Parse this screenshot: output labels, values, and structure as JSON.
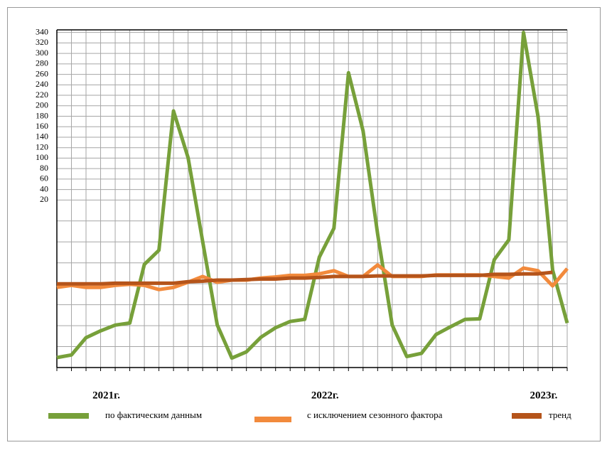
{
  "chart_data": {
    "type": "line",
    "categories": [
      null,
      null,
      null,
      "2021г.",
      null,
      null,
      null,
      null,
      null,
      null,
      null,
      null,
      null,
      null,
      null,
      null,
      null,
      null,
      "2022г.",
      null,
      null,
      null,
      null,
      null,
      null,
      null,
      null,
      null,
      null,
      null,
      null,
      null,
      null,
      "2023г.",
      null,
      null
    ],
    "series": [
      {
        "name": "по фактическим данным",
        "color": "#77a03a",
        "values": [
          -281,
          -276,
          -243,
          -230,
          -219,
          -215,
          -103,
          -76,
          190,
          101,
          -59,
          -219,
          -282,
          -270,
          -242,
          -224,
          -212,
          -208,
          -89,
          -34,
          263,
          152,
          -45,
          -219,
          -279,
          -273,
          -237,
          -222,
          -208,
          -207,
          -94,
          -56,
          340,
          179,
          -114,
          -215
        ]
      },
      {
        "name": "с исключением сезонного фактора",
        "color": "#f28a3c",
        "values": [
          -147,
          -143,
          -147,
          -147,
          -143,
          -141,
          -143,
          -151,
          -147,
          -137,
          -126,
          -137,
          -133,
          -133,
          -129,
          -127,
          -124,
          -124,
          -121,
          -115,
          -126,
          -126,
          -104,
          -126,
          -126,
          -126,
          -123,
          -123,
          -123,
          -123,
          -126,
          -129,
          -110,
          -115,
          -144,
          -111
        ]
      },
      {
        "name": "тренд",
        "color": "#b5541a",
        "values": [
          -140,
          -140,
          -140,
          -140,
          -139,
          -139,
          -139,
          -139,
          -139,
          -136,
          -135,
          -133,
          -133,
          -132,
          -131,
          -131,
          -129,
          -129,
          -128,
          -126,
          -126,
          -126,
          -125,
          -125,
          -125,
          -125,
          -124,
          -124,
          -124,
          -124,
          -122,
          -122,
          -121,
          -121,
          -118,
          null
        ]
      }
    ],
    "ylim": [
      -300,
      345
    ],
    "yticks": [
      340,
      320,
      300,
      280,
      260,
      240,
      220,
      200,
      180,
      160,
      140,
      120,
      100,
      80,
      60,
      40,
      20
    ],
    "ygrid": [
      -20,
      -60,
      -100,
      -140,
      -180,
      -220,
      -260
    ],
    "grid": true
  }
}
